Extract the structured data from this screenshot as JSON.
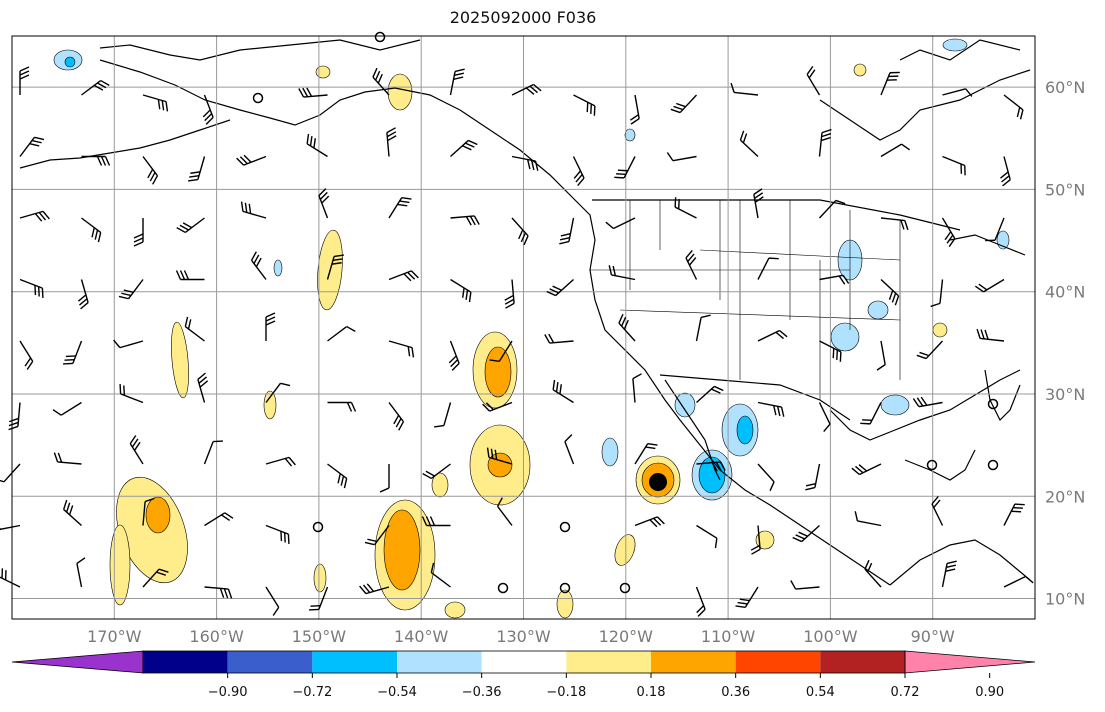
{
  "title": "2025092000 F036",
  "map": {
    "extent": {
      "lon": [
        -180,
        -80
      ],
      "lat": [
        8,
        65
      ]
    },
    "lon_labels": [
      "170°W",
      "160°W",
      "150°W",
      "140°W",
      "130°W",
      "120°W",
      "110°W",
      "100°W",
      "90°W"
    ],
    "lat_labels": [
      "60°N",
      "50°N",
      "40°N",
      "30°N",
      "20°N",
      "10°N"
    ],
    "grid": true,
    "wind_barbs": true
  },
  "colorbar": {
    "tick_labels": [
      "−0.90",
      "−0.72",
      "−0.54",
      "−0.36",
      "−0.18",
      "0.18",
      "0.36",
      "0.54",
      "0.72",
      "0.90"
    ],
    "colors": [
      "#9a32cd",
      "#00008b",
      "#3a5fcd",
      "#00bfff",
      "#b0e2ff",
      "#ffffff",
      "#ffec8b",
      "#ffa500",
      "#ff4500",
      "#b22222",
      "#ff82ab"
    ],
    "extend": "both"
  }
}
